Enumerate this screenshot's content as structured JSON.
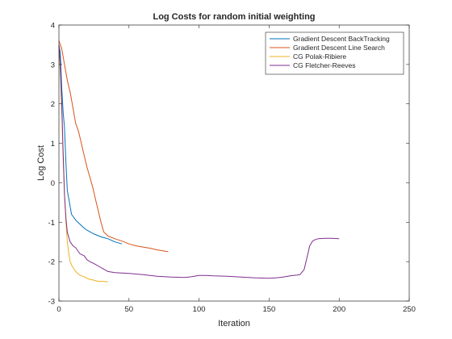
{
  "chart_data": {
    "type": "line",
    "title": "Log Costs for random initial weighting",
    "xlabel": "Iteration",
    "ylabel": "Log Cost",
    "xlim": [
      0,
      250
    ],
    "ylim": [
      -3,
      4
    ],
    "xticks": [
      "0",
      "50",
      "100",
      "150",
      "200",
      "250"
    ],
    "yticks": [
      "-3",
      "-2",
      "-1",
      "0",
      "1",
      "2",
      "3",
      "4"
    ],
    "grid": false,
    "legend_position": "top-right",
    "series": [
      {
        "name": "Gradient Descent BackTracking",
        "color": "#0072BD",
        "x": [
          0,
          1,
          2,
          3,
          4,
          5,
          6,
          7,
          8,
          9,
          10,
          12,
          15,
          18,
          20,
          25,
          30,
          35,
          40,
          45
        ],
        "y": [
          3.5,
          3.3,
          2.4,
          1.8,
          1.4,
          0.5,
          -0.2,
          -0.4,
          -0.6,
          -0.8,
          -0.85,
          -0.95,
          -1.05,
          -1.15,
          -1.2,
          -1.3,
          -1.37,
          -1.42,
          -1.5,
          -1.55
        ]
      },
      {
        "name": "Gradient Descent Line Search",
        "color": "#D95319",
        "x": [
          0,
          2,
          4,
          6,
          8,
          10,
          12,
          14,
          16,
          18,
          20,
          22,
          24,
          26,
          28,
          30,
          32,
          35,
          40,
          45,
          50,
          55,
          60,
          65,
          70,
          75,
          78
        ],
        "y": [
          3.6,
          3.4,
          3.0,
          2.6,
          2.3,
          1.9,
          1.5,
          1.3,
          1.0,
          0.7,
          0.4,
          0.15,
          -0.1,
          -0.4,
          -0.7,
          -1.0,
          -1.25,
          -1.35,
          -1.42,
          -1.48,
          -1.55,
          -1.6,
          -1.63,
          -1.66,
          -1.7,
          -1.73,
          -1.75
        ]
      },
      {
        "name": "CG Polak-Ribiere",
        "color": "#EDB120",
        "x": [
          0,
          1,
          2,
          3,
          4,
          5,
          6,
          7,
          8,
          9,
          10,
          12,
          14,
          16,
          18,
          20,
          22,
          25,
          28,
          31,
          35
        ],
        "y": [
          3.5,
          2.8,
          1.8,
          0.6,
          -0.3,
          -1.0,
          -1.5,
          -1.8,
          -2.0,
          -2.08,
          -2.15,
          -2.25,
          -2.32,
          -2.36,
          -2.38,
          -2.42,
          -2.45,
          -2.47,
          -2.5,
          -2.5,
          -2.51
        ]
      },
      {
        "name": "CG Fletcher-Reeves",
        "color": "#7E2F8E",
        "x": [
          0,
          1,
          2,
          3,
          4,
          5,
          6,
          8,
          10,
          12,
          15,
          18,
          20,
          22,
          25,
          30,
          35,
          40,
          50,
          60,
          70,
          80,
          90,
          95,
          100,
          105,
          110,
          120,
          130,
          140,
          150,
          155,
          160,
          165,
          170,
          172,
          175,
          177,
          179,
          181,
          183,
          185,
          190,
          195,
          200
        ],
        "y": [
          3.5,
          3.0,
          2.0,
          0.8,
          -0.3,
          -0.9,
          -1.25,
          -1.5,
          -1.6,
          -1.65,
          -1.8,
          -1.85,
          -1.95,
          -2.0,
          -2.05,
          -2.15,
          -2.25,
          -2.28,
          -2.3,
          -2.33,
          -2.37,
          -2.39,
          -2.4,
          -2.38,
          -2.35,
          -2.35,
          -2.36,
          -2.37,
          -2.39,
          -2.41,
          -2.42,
          -2.41,
          -2.39,
          -2.36,
          -2.34,
          -2.33,
          -2.2,
          -1.9,
          -1.6,
          -1.48,
          -1.44,
          -1.42,
          -1.41,
          -1.41,
          -1.42
        ]
      }
    ]
  }
}
